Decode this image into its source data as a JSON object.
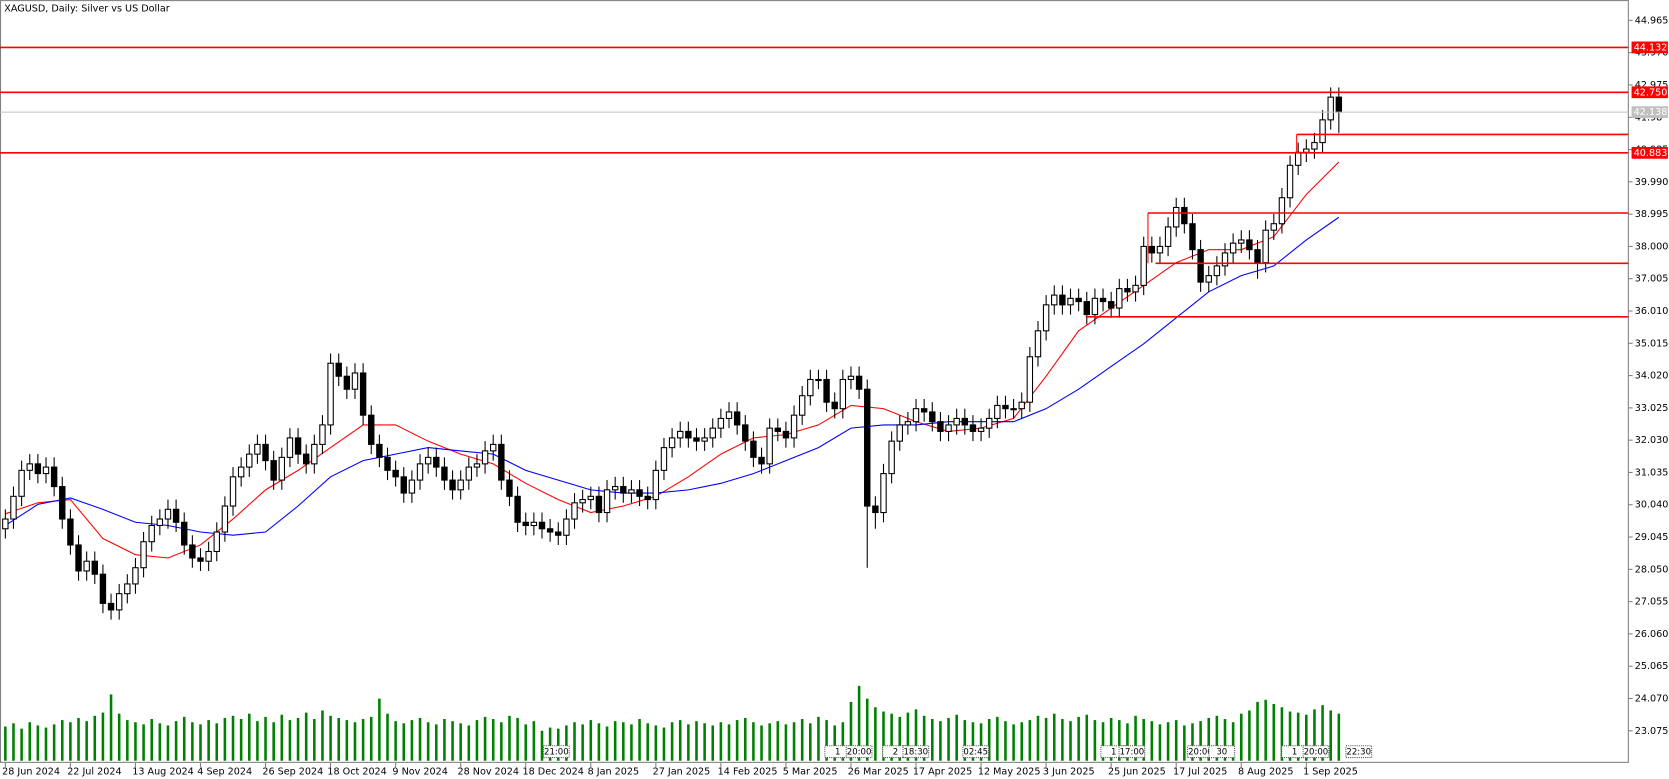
{
  "chart_data": {
    "type": "candlestick",
    "title": "XAGUSD, Daily:  Silver vs US Dollar",
    "categories": [
      "28 Jun 2024",
      null,
      null,
      null,
      null,
      null,
      null,
      null,
      "22 Jul 2024",
      null,
      null,
      null,
      null,
      null,
      null,
      null,
      "13 Aug 2024",
      null,
      null,
      null,
      null,
      null,
      null,
      null,
      "4 Sep 2024",
      null,
      null,
      null,
      null,
      null,
      null,
      null,
      "26 Sep 2024",
      null,
      null,
      null,
      null,
      null,
      null,
      null,
      "18 Oct 2024",
      null,
      null,
      null,
      null,
      null,
      null,
      null,
      "9 Nov 2024",
      null,
      null,
      null,
      null,
      null,
      null,
      null,
      "28 Nov 2024",
      null,
      null,
      null,
      null,
      null,
      null,
      null,
      "18 Dec 2024",
      null,
      null,
      null,
      null,
      null,
      null,
      null,
      "8 Jan 2025",
      null,
      null,
      null,
      null,
      null,
      null,
      null,
      "27 Jan 2025",
      null,
      null,
      null,
      null,
      null,
      null,
      null,
      "14 Feb 2025",
      null,
      null,
      null,
      null,
      null,
      null,
      null,
      "5 Mar 2025",
      null,
      null,
      null,
      null,
      null,
      null,
      null,
      "26 Mar 2025",
      null,
      null,
      null,
      null,
      null,
      null,
      null,
      "17 Apr 2025",
      null,
      null,
      null,
      null,
      null,
      null,
      null,
      "12 May 2025",
      null,
      null,
      null,
      null,
      null,
      null,
      null,
      "3 Jun 2025",
      null,
      null,
      null,
      null,
      null,
      null,
      null,
      "25 Jun 2025",
      null,
      null,
      null,
      null,
      null,
      null,
      null,
      "17 Jul 2025",
      null,
      null,
      null,
      null,
      null,
      null,
      null,
      "8 Aug 2025",
      null,
      null,
      null,
      null,
      null,
      null,
      null,
      "1 Sep 2025",
      null,
      null,
      null,
      null
    ],
    "open": [
      29.3,
      29.6,
      30.3,
      31.1,
      31.3,
      31.0,
      31.2,
      30.6,
      29.6,
      28.8,
      28.0,
      28.3,
      27.9,
      27.0,
      26.8,
      27.3,
      27.6,
      28.1,
      28.9,
      29.4,
      29.6,
      29.9,
      29.5,
      28.8,
      28.4,
      28.3,
      28.6,
      29.2,
      30.0,
      30.9,
      31.2,
      31.6,
      31.9,
      31.4,
      30.8,
      31.5,
      32.1,
      31.6,
      31.3,
      31.9,
      32.5,
      34.4,
      34.0,
      33.6,
      34.1,
      32.8,
      31.9,
      31.5,
      31.1,
      30.9,
      30.4,
      30.8,
      31.3,
      31.5,
      31.2,
      30.8,
      30.5,
      30.8,
      31.2,
      31.3,
      31.7,
      31.9,
      30.8,
      30.3,
      29.5,
      29.4,
      29.5,
      29.3,
      29.2,
      29.1,
      29.6,
      30.1,
      30.2,
      30.3,
      29.8,
      30.5,
      30.6,
      30.4,
      30.5,
      30.3,
      30.2,
      31.1,
      31.8,
      32.1,
      32.3,
      32.1,
      32.0,
      32.1,
      32.4,
      32.7,
      32.9,
      32.5,
      32.0,
      31.5,
      31.3,
      32.4,
      32.3,
      32.1,
      32.8,
      33.4,
      33.9,
      33.9,
      33.2,
      33.0,
      33.9,
      34.0,
      33.6,
      30.0,
      29.8,
      31.0,
      32.0,
      32.5,
      32.6,
      33.0,
      32.9,
      32.6,
      32.3,
      32.5,
      32.7,
      32.5,
      32.3,
      32.4,
      32.7,
      33.1,
      33.0,
      33.0,
      33.2,
      34.6,
      35.4,
      36.2,
      36.5,
      36.2,
      36.4,
      36.3,
      35.9,
      36.4,
      36.3,
      36.1,
      36.7,
      36.6,
      36.8,
      38.0,
      37.8,
      38.0,
      38.6,
      39.2,
      38.7,
      37.9,
      36.9,
      37.1,
      37.4,
      37.8,
      38.1,
      38.2,
      37.9,
      37.5,
      38.5,
      38.7,
      39.5,
      40.5,
      40.9,
      41.0,
      41.2,
      41.9,
      42.6
    ],
    "high": [
      29.9,
      30.6,
      31.4,
      31.6,
      31.6,
      31.5,
      31.5,
      30.9,
      29.9,
      29.1,
      28.6,
      28.6,
      28.2,
      27.3,
      27.6,
      27.9,
      28.4,
      29.2,
      29.7,
      29.9,
      30.2,
      30.2,
      29.8,
      29.1,
      28.7,
      28.9,
      29.5,
      30.3,
      31.2,
      31.5,
      31.9,
      32.2,
      32.2,
      31.7,
      31.8,
      32.4,
      32.4,
      31.9,
      32.2,
      32.8,
      34.7,
      34.7,
      34.3,
      34.4,
      34.4,
      33.1,
      32.2,
      31.8,
      31.4,
      31.2,
      31.1,
      31.6,
      31.8,
      31.8,
      31.5,
      31.1,
      31.1,
      31.5,
      31.6,
      32.0,
      32.2,
      32.2,
      31.1,
      30.6,
      29.8,
      29.8,
      29.8,
      29.6,
      29.5,
      29.9,
      30.4,
      30.5,
      30.6,
      30.6,
      30.8,
      30.9,
      30.9,
      30.8,
      30.8,
      30.6,
      31.4,
      32.1,
      32.4,
      32.6,
      32.6,
      32.4,
      32.4,
      32.7,
      33.0,
      33.2,
      33.2,
      32.8,
      32.3,
      31.8,
      32.7,
      32.7,
      32.6,
      33.1,
      33.7,
      34.2,
      34.2,
      34.2,
      33.5,
      34.2,
      34.3,
      34.3,
      33.9,
      30.3,
      31.3,
      32.3,
      32.8,
      32.9,
      33.3,
      33.3,
      33.2,
      32.9,
      32.8,
      33.0,
      33.0,
      32.8,
      32.7,
      33.0,
      33.4,
      33.4,
      33.3,
      33.5,
      34.9,
      35.7,
      36.5,
      36.8,
      36.8,
      36.7,
      36.7,
      36.6,
      36.7,
      36.7,
      36.6,
      37.0,
      37.0,
      37.1,
      38.3,
      38.3,
      38.3,
      38.9,
      39.5,
      39.5,
      39.0,
      38.2,
      37.4,
      37.7,
      38.1,
      38.4,
      38.5,
      38.5,
      38.2,
      38.8,
      39.0,
      39.8,
      40.8,
      41.2,
      41.3,
      41.5,
      42.2,
      42.9,
      42.9
    ],
    "low": [
      29.0,
      29.3,
      30.0,
      30.8,
      30.7,
      30.7,
      30.3,
      29.3,
      28.5,
      27.7,
      27.7,
      27.6,
      26.7,
      26.5,
      26.5,
      27.0,
      27.3,
      27.8,
      28.6,
      29.1,
      29.3,
      29.2,
      28.5,
      28.1,
      28.0,
      28.0,
      28.3,
      28.9,
      29.7,
      30.6,
      30.9,
      31.3,
      31.1,
      30.5,
      30.5,
      31.2,
      31.3,
      31.0,
      31.0,
      31.6,
      32.2,
      33.7,
      33.3,
      33.3,
      32.5,
      31.6,
      31.2,
      30.8,
      30.6,
      30.1,
      30.1,
      30.5,
      31.0,
      30.9,
      30.5,
      30.2,
      30.2,
      30.5,
      30.9,
      31.0,
      31.4,
      30.5,
      30.0,
      29.2,
      29.1,
      29.1,
      29.0,
      28.9,
      28.8,
      28.8,
      29.3,
      29.8,
      29.9,
      29.5,
      29.5,
      30.2,
      30.1,
      30.1,
      30.0,
      29.9,
      29.9,
      30.8,
      31.5,
      31.8,
      31.8,
      31.7,
      31.7,
      31.8,
      32.1,
      32.4,
      32.2,
      31.7,
      31.2,
      31.0,
      31.0,
      32.0,
      31.8,
      31.8,
      32.5,
      33.1,
      33.6,
      32.9,
      32.7,
      32.7,
      33.6,
      33.3,
      28.1,
      29.3,
      29.5,
      30.7,
      31.7,
      32.2,
      32.3,
      32.6,
      32.3,
      32.0,
      32.0,
      32.2,
      32.2,
      32.0,
      32.0,
      32.1,
      32.4,
      32.7,
      32.7,
      32.7,
      32.9,
      34.3,
      35.1,
      35.9,
      35.9,
      35.9,
      36.0,
      35.6,
      35.6,
      36.0,
      35.8,
      35.8,
      36.3,
      36.3,
      36.5,
      37.5,
      37.5,
      37.7,
      38.3,
      38.4,
      37.6,
      36.6,
      36.6,
      36.8,
      37.1,
      37.5,
      37.8,
      37.6,
      37.0,
      37.2,
      38.2,
      38.4,
      39.2,
      40.2,
      40.6,
      40.7,
      40.9,
      41.6,
      41.5
    ],
    "close": [
      29.6,
      30.3,
      31.1,
      31.3,
      31.0,
      31.2,
      30.6,
      29.6,
      28.8,
      28.0,
      28.3,
      27.9,
      27.0,
      26.8,
      27.3,
      27.6,
      28.1,
      28.9,
      29.4,
      29.6,
      29.9,
      29.5,
      28.8,
      28.4,
      28.3,
      28.6,
      29.2,
      30.0,
      30.9,
      31.2,
      31.6,
      31.9,
      31.4,
      30.8,
      31.5,
      32.1,
      31.6,
      31.3,
      31.9,
      32.5,
      34.4,
      34.0,
      33.6,
      34.1,
      32.8,
      31.9,
      31.5,
      31.1,
      30.9,
      30.4,
      30.8,
      31.3,
      31.5,
      31.2,
      30.8,
      30.5,
      30.8,
      31.2,
      31.3,
      31.7,
      31.9,
      30.8,
      30.3,
      29.5,
      29.4,
      29.5,
      29.3,
      29.2,
      29.1,
      29.6,
      30.1,
      30.2,
      30.3,
      29.8,
      30.5,
      30.6,
      30.4,
      30.5,
      30.3,
      30.2,
      31.1,
      31.8,
      32.1,
      32.3,
      32.1,
      32.0,
      32.1,
      32.4,
      32.7,
      32.9,
      32.5,
      32.0,
      31.5,
      31.3,
      32.4,
      32.3,
      32.1,
      32.8,
      33.4,
      33.9,
      33.9,
      33.2,
      33.0,
      33.9,
      34.0,
      33.6,
      30.0,
      29.8,
      31.0,
      32.0,
      32.5,
      32.6,
      33.0,
      32.9,
      32.6,
      32.3,
      32.5,
      32.7,
      32.5,
      32.3,
      32.4,
      32.7,
      33.1,
      33.0,
      33.0,
      33.2,
      34.6,
      35.4,
      36.2,
      36.5,
      36.2,
      36.4,
      36.3,
      35.9,
      36.4,
      36.3,
      36.1,
      36.7,
      36.6,
      36.8,
      38.0,
      37.8,
      38.0,
      38.6,
      39.2,
      38.7,
      37.9,
      36.9,
      37.1,
      37.4,
      37.8,
      38.1,
      38.2,
      37.9,
      37.5,
      38.5,
      38.7,
      39.5,
      40.5,
      40.9,
      41.0,
      41.2,
      41.9,
      42.6,
      42.14
    ],
    "up_color": "#ffffff",
    "down_color": "#000000",
    "volume": {
      "color": "#008000",
      "values": [
        32,
        35,
        30,
        36,
        33,
        31,
        34,
        38,
        36,
        40,
        37,
        42,
        45,
        62,
        44,
        38,
        36,
        34,
        39,
        35,
        33,
        37,
        41,
        36,
        34,
        38,
        35,
        40,
        42,
        39,
        44,
        37,
        41,
        36,
        43,
        38,
        40,
        45,
        39,
        47,
        42,
        40,
        38,
        36,
        39,
        41,
        58,
        44,
        37,
        35,
        38,
        40,
        36,
        34,
        39,
        37,
        35,
        33,
        38,
        41,
        39,
        36,
        42,
        40,
        34,
        37,
        28,
        31,
        30,
        33,
        36,
        34,
        38,
        35,
        32,
        37,
        36,
        34,
        39,
        35,
        33,
        31,
        36,
        38,
        34,
        37,
        35,
        33,
        36,
        34,
        38,
        40,
        36,
        33,
        35,
        37,
        34,
        36,
        39,
        35,
        41,
        38,
        33,
        36,
        55,
        70,
        58,
        50,
        46,
        44,
        41,
        45,
        48,
        42,
        39,
        37,
        40,
        43,
        38,
        36,
        35,
        39,
        41,
        37,
        34,
        36,
        38,
        42,
        40,
        44,
        39,
        37,
        41,
        43,
        38,
        36,
        40,
        38,
        35,
        42,
        39,
        37,
        34,
        36,
        38,
        33,
        35,
        37,
        40,
        42,
        39,
        36,
        44,
        47,
        55,
        57,
        53,
        50,
        46,
        45,
        43,
        48,
        52,
        47,
        44
      ]
    },
    "moving_averages": [
      {
        "color": "#ff0000",
        "x": [
          0,
          4,
          8,
          12,
          16,
          20,
          24,
          28,
          32,
          36,
          40,
          44,
          48,
          52,
          56,
          60,
          64,
          68,
          72,
          76,
          80,
          84,
          88,
          92,
          96,
          100,
          104,
          108,
          112,
          116,
          120,
          124,
          128,
          132,
          136,
          140,
          144,
          148,
          152,
          156,
          160,
          164
        ],
        "values": [
          29.76,
          30.1,
          30.2,
          29.0,
          28.5,
          28.4,
          28.8,
          29.6,
          30.5,
          31.1,
          31.8,
          32.5,
          32.5,
          32.0,
          31.6,
          31.3,
          30.7,
          30.2,
          29.8,
          30.0,
          30.3,
          30.9,
          31.6,
          32.1,
          32.2,
          32.5,
          33.1,
          33.0,
          32.6,
          32.3,
          32.4,
          32.7,
          34.0,
          35.4,
          36.1,
          36.8,
          37.5,
          37.9,
          37.9,
          38.3,
          39.6,
          40.6
        ]
      },
      {
        "color": "#0000ff",
        "x": [
          0,
          4,
          8,
          12,
          16,
          20,
          24,
          28,
          32,
          36,
          40,
          44,
          48,
          52,
          56,
          60,
          64,
          68,
          72,
          76,
          80,
          84,
          88,
          92,
          96,
          100,
          104,
          108,
          112,
          116,
          120,
          124,
          128,
          132,
          136,
          140,
          144,
          148,
          152,
          156,
          160,
          164
        ],
        "values": [
          29.4,
          30.05,
          30.25,
          29.9,
          29.5,
          29.4,
          29.2,
          29.1,
          29.2,
          30.0,
          30.9,
          31.4,
          31.6,
          31.8,
          31.7,
          31.6,
          31.1,
          30.8,
          30.5,
          30.4,
          30.4,
          30.5,
          30.7,
          31.0,
          31.4,
          31.8,
          32.4,
          32.5,
          32.5,
          32.6,
          32.6,
          32.6,
          33.0,
          33.6,
          34.3,
          35.0,
          35.8,
          36.6,
          37.1,
          37.4,
          38.2,
          38.9
        ]
      }
    ],
    "levels": [
      {
        "value": 44.132,
        "color": "#ff0000"
      },
      {
        "value": 42.75,
        "label": "42.750",
        "color": "#ff0000"
      },
      {
        "value": 42.138,
        "color": "#c0c0c0"
      },
      {
        "value": 40.883,
        "color": "#ff0000"
      }
    ],
    "segments": [
      {
        "value": 41.45,
        "color": "#ff0000"
      },
      {
        "value": 39.03,
        "color": "#ff0000"
      },
      {
        "value": 37.48,
        "color": "#ff0000"
      },
      {
        "value": 35.83,
        "color": "#ff0000"
      }
    ],
    "time_tags": [
      "21:00",
      "1",
      "20:00",
      "2",
      "18:30",
      "02:45",
      "1",
      "17:00",
      "20:00",
      "30",
      "1",
      "20:00",
      "22:30"
    ],
    "ylim": [
      22.086,
      45.591
    ],
    "yticks": [
      44.965,
      {
        "value": 43.97,
        "label": "43.970"
      },
      42.975,
      41.98,
      40.985,
      {
        "value": 39.99,
        "label": "39.990"
      },
      38.995,
      {
        "value": 38,
        "label": "38.000"
      },
      37.005,
      {
        "value": 36.01,
        "label": "36.010"
      },
      35.015,
      {
        "value": 34.02,
        "label": "34.020"
      },
      33.025,
      {
        "value": 32.03,
        "label": "32.030"
      },
      31.035,
      {
        "value": 30.04,
        "label": "30.040"
      },
      29.045,
      {
        "value": 28.05,
        "label": "28.050"
      },
      27.055,
      {
        "value": 26.06,
        "label": "26.060"
      },
      25.065,
      {
        "value": 24.07,
        "label": "24.070"
      },
      23.075
    ]
  }
}
